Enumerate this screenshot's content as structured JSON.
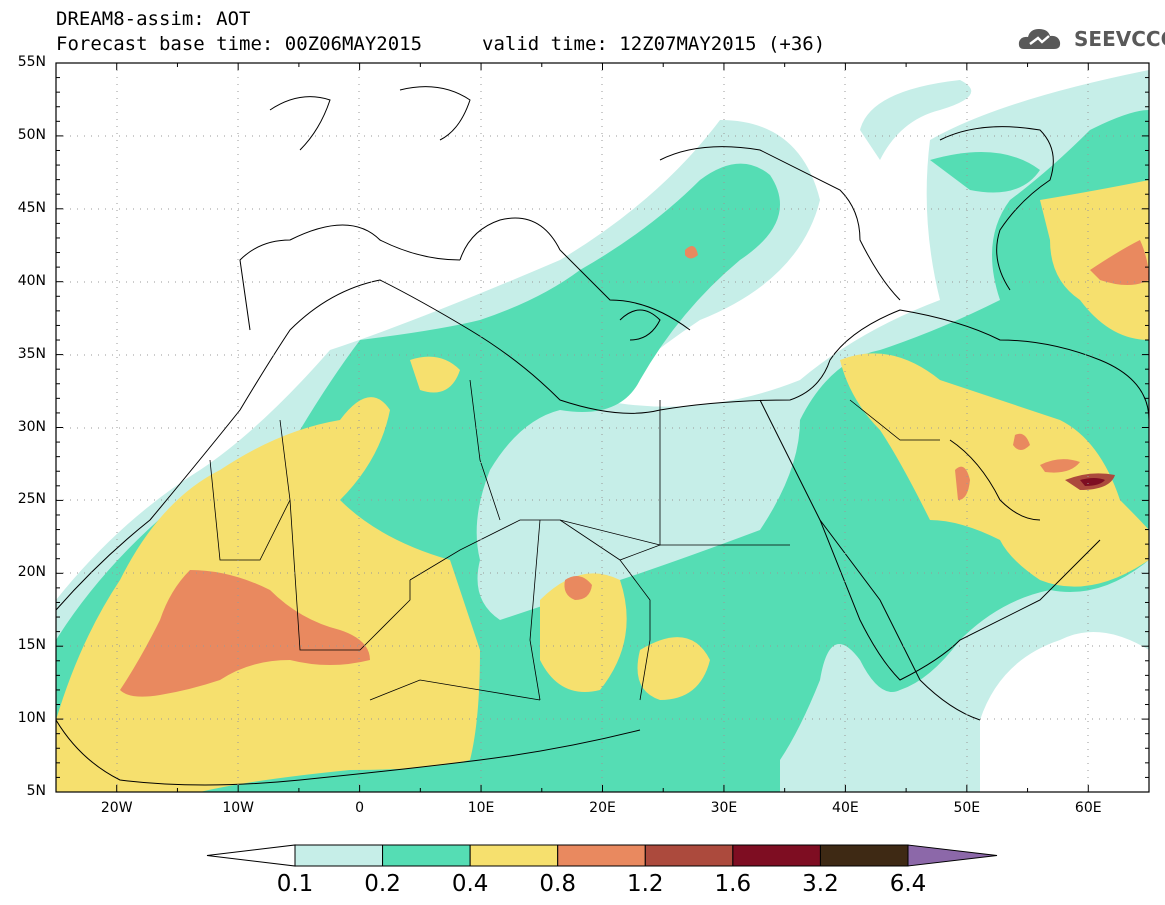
{
  "header": {
    "line1": "DREAM8-assim: AOT",
    "line2": "Forecast base time: 00Z06MAY2015",
    "valid": "valid time: 12Z07MAY2015 (+36)",
    "logo_text": "SEEVCCC",
    "logo_icon": "cloud-icon"
  },
  "map": {
    "extent": {
      "lon_min": -25,
      "lon_max": 65,
      "lat_min": 5,
      "lat_max": 55
    },
    "lat_labels": [
      "5N",
      "10N",
      "15N",
      "20N",
      "25N",
      "30N",
      "35N",
      "40N",
      "45N",
      "50N",
      "55N"
    ],
    "lat_values": [
      5,
      10,
      15,
      20,
      25,
      30,
      35,
      40,
      45,
      50,
      55
    ],
    "lon_labels": [
      "20W",
      "10W",
      "0",
      "10E",
      "20E",
      "30E",
      "40E",
      "50E",
      "60E"
    ],
    "lon_values": [
      -20,
      -10,
      0,
      10,
      20,
      30,
      40,
      50,
      60
    ],
    "grid": "dotted"
  },
  "legend": {
    "ticks": [
      "0.1",
      "0.2",
      "0.4",
      "0.8",
      "1.2",
      "1.6",
      "3.2",
      "6.4"
    ],
    "colors": [
      "#ffffff",
      "#c6eee8",
      "#55ddb4",
      "#f6e06e",
      "#e9895f",
      "#ac4a3d",
      "#7e0d22",
      "#3e2914",
      "#8c68a9"
    ]
  }
}
